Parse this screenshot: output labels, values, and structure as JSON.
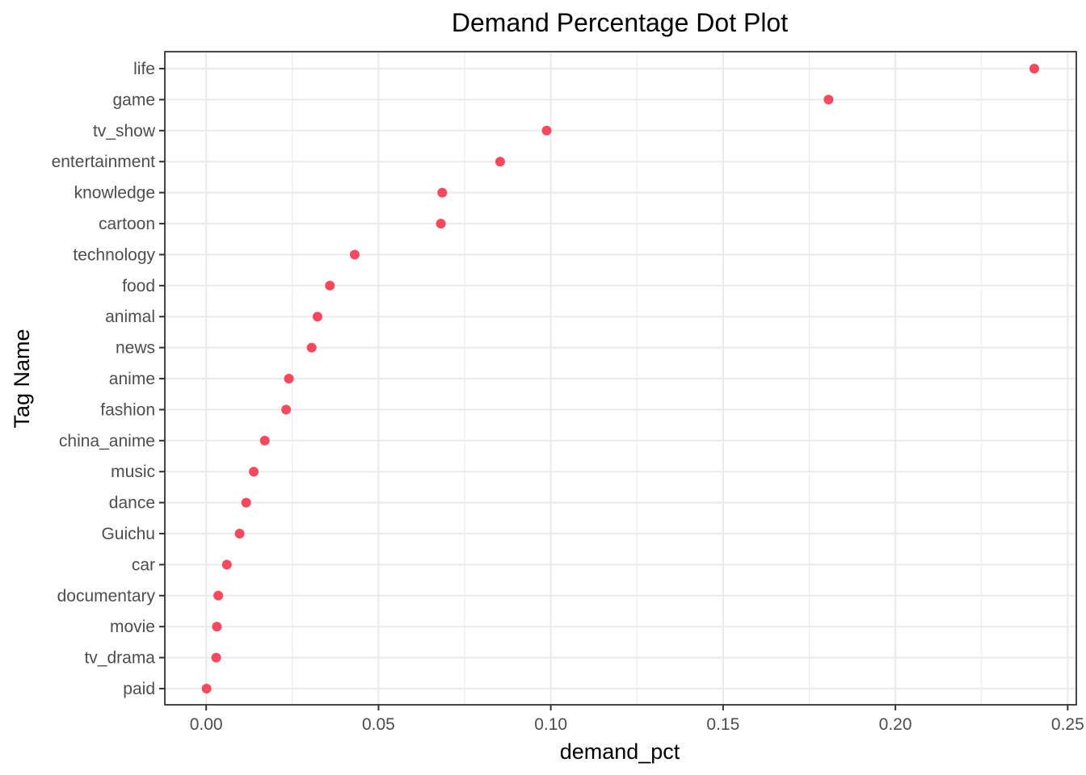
{
  "chart_data": {
    "type": "scatter",
    "title": "Demand Percentage Dot Plot",
    "xlabel": "demand_pct",
    "ylabel": "Tag Name",
    "xlim": [
      -0.012,
      0.2525
    ],
    "x_ticks": [
      0.0,
      0.05,
      0.1,
      0.15,
      0.2,
      0.25
    ],
    "x_tick_labels": [
      "0.00",
      "0.05",
      "0.10",
      "0.15",
      "0.20",
      "0.25"
    ],
    "x_minor_ticks": [
      0.025,
      0.075,
      0.125,
      0.175,
      0.225
    ],
    "grid": true,
    "point_color": "#F8485E",
    "categories": [
      "life",
      "game",
      "tv_show",
      "entertainment",
      "knowledge",
      "cartoon",
      "technology",
      "food",
      "animal",
      "news",
      "anime",
      "fashion",
      "china_anime",
      "music",
      "dance",
      "Guichu",
      "car",
      "documentary",
      "movie",
      "tv_drama",
      "paid"
    ],
    "values": [
      0.2403,
      0.1806,
      0.0988,
      0.0853,
      0.0685,
      0.0681,
      0.0431,
      0.0359,
      0.0323,
      0.0306,
      0.024,
      0.0232,
      0.017,
      0.0138,
      0.0116,
      0.0097,
      0.006,
      0.0035,
      0.0031,
      0.0029,
      0.0001
    ]
  }
}
